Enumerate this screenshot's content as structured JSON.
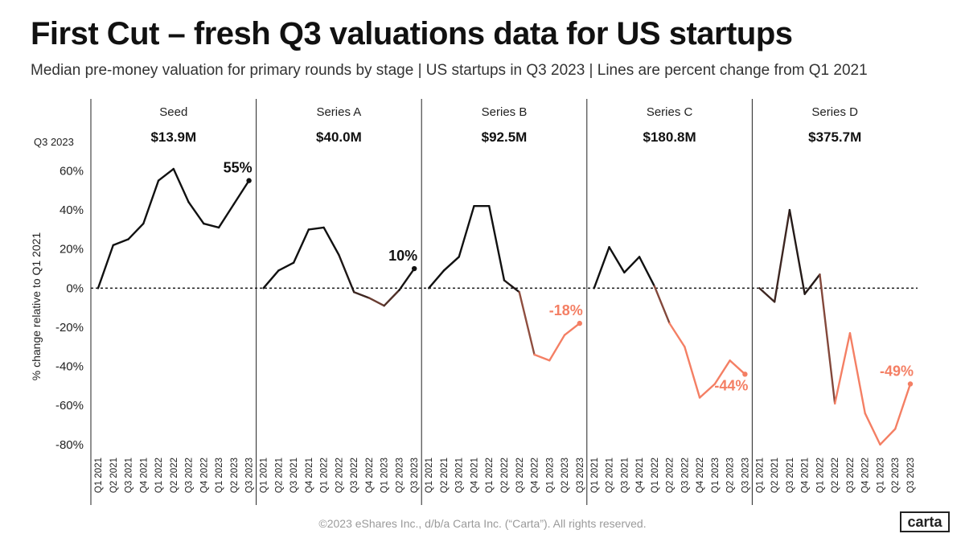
{
  "title": "First Cut – fresh Q3 valuations data for US startups",
  "subtitle": "Median pre-money valuation for primary rounds by stage | US startups in Q3 2023 | Lines are percent change from Q1 2021",
  "footer": "©2023 eShares Inc., d/b/a Carta Inc. (“Carta”). All rights reserved.",
  "logo_text": "carta",
  "colors": {
    "positive": "#111111",
    "negative": "#f47f64",
    "zero_line": "#111111",
    "divider": "#222222"
  },
  "chart_data": {
    "type": "line",
    "title": "First Cut – fresh Q3 valuations data for US startups",
    "ylabel": "% change relative to Q1 2021",
    "row_label": "Q3 2023",
    "ylim": [
      -85,
      68
    ],
    "yticks": [
      60,
      40,
      20,
      0,
      -20,
      -40,
      -60,
      -80
    ],
    "ytick_labels": [
      "60%",
      "40%",
      "20%",
      "0%",
      "-20%",
      "-40%",
      "-60%",
      "-80%"
    ],
    "x": [
      "Q1 2021",
      "Q2 2021",
      "Q3 2021",
      "Q4 2021",
      "Q1 2022",
      "Q2 2022",
      "Q3 2022",
      "Q4 2022",
      "Q1 2023",
      "Q2 2023",
      "Q3 2023"
    ],
    "series": [
      {
        "name": "Seed",
        "q3_2023_value": "$13.9M",
        "end_label": "55%",
        "values": [
          0,
          22,
          25,
          33,
          55,
          61,
          44,
          33,
          31,
          43,
          55
        ]
      },
      {
        "name": "Series A",
        "q3_2023_value": "$40.0M",
        "end_label": "10%",
        "values": [
          0,
          9,
          13,
          30,
          31,
          17,
          -2,
          -5,
          -9,
          -1,
          10
        ]
      },
      {
        "name": "Series B",
        "q3_2023_value": "$92.5M",
        "end_label": "-18%",
        "values": [
          0,
          9,
          16,
          42,
          42,
          4,
          -2,
          -34,
          -37,
          -24,
          -18
        ]
      },
      {
        "name": "Series C",
        "q3_2023_value": "$180.8M",
        "end_label": "-44%",
        "values": [
          0,
          21,
          8,
          16,
          1,
          -18,
          -30,
          -56,
          -49,
          -37,
          -44
        ]
      },
      {
        "name": "Series D",
        "q3_2023_value": "$375.7M",
        "end_label": "-49%",
        "values": [
          0,
          -7,
          40,
          -3,
          7,
          -59,
          -23,
          -64,
          -80,
          -72,
          -49
        ]
      }
    ]
  }
}
